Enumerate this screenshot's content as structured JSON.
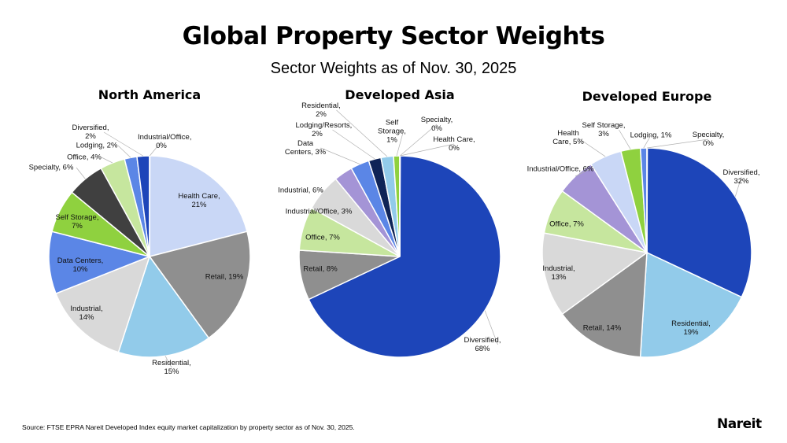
{
  "title": "Global Property Sector Weights",
  "subtitle": "Sector Weights as of Nov. 30, 2025",
  "source": "Source: FTSE EPRA Nareit Developed Index equity market capitalization by property sector as of Nov. 30, 2025.",
  "logo": "Nareit",
  "colors": {
    "Health Care": "#c9d7f6",
    "Retail": "#8f8f8f",
    "Residential": "#92cbea",
    "Industrial": "#d9d9d9",
    "Data Centers": "#5b86e6",
    "Self Storage": "#8fd13f",
    "Specialty": "#404040",
    "Office": "#c6e69e",
    "Lodging": "#5b86e6",
    "Lodging/Resorts": "#0f2457",
    "Diversified": "#1d45b9",
    "Industrial/Office": "#a494d6"
  },
  "chart_data": [
    {
      "type": "pie",
      "title": "North America",
      "slices": [
        {
          "label": "Health Care",
          "value": 21
        },
        {
          "label": "Retail",
          "value": 19
        },
        {
          "label": "Residential",
          "value": 15
        },
        {
          "label": "Industrial",
          "value": 14
        },
        {
          "label": "Data Centers",
          "value": 10
        },
        {
          "label": "Self Storage",
          "value": 7
        },
        {
          "label": "Specialty",
          "value": 6
        },
        {
          "label": "Office",
          "value": 4
        },
        {
          "label": "Lodging",
          "value": 2
        },
        {
          "label": "Diversified",
          "value": 2
        },
        {
          "label": "Industrial/Office",
          "value": 0
        }
      ]
    },
    {
      "type": "pie",
      "title": "Developed Asia",
      "slices": [
        {
          "label": "Diversified",
          "value": 68
        },
        {
          "label": "Retail",
          "value": 8
        },
        {
          "label": "Office",
          "value": 7
        },
        {
          "label": "Industrial",
          "value": 6
        },
        {
          "label": "Industrial/Office",
          "value": 3
        },
        {
          "label": "Data Centers",
          "value": 3
        },
        {
          "label": "Lodging/Resorts",
          "value": 2
        },
        {
          "label": "Residential",
          "value": 2
        },
        {
          "label": "Self Storage",
          "value": 1
        },
        {
          "label": "Specialty",
          "value": 0
        },
        {
          "label": "Health Care",
          "value": 0
        }
      ]
    },
    {
      "type": "pie",
      "title": "Developed Europe",
      "slices": [
        {
          "label": "Diversified",
          "value": 32
        },
        {
          "label": "Residential",
          "value": 19
        },
        {
          "label": "Retail",
          "value": 14
        },
        {
          "label": "Industrial",
          "value": 13
        },
        {
          "label": "Office",
          "value": 7
        },
        {
          "label": "Industrial/Office",
          "value": 6
        },
        {
          "label": "Health Care",
          "value": 5
        },
        {
          "label": "Self Storage",
          "value": 3
        },
        {
          "label": "Lodging",
          "value": 1
        },
        {
          "label": "Specialty",
          "value": 0
        }
      ]
    }
  ]
}
